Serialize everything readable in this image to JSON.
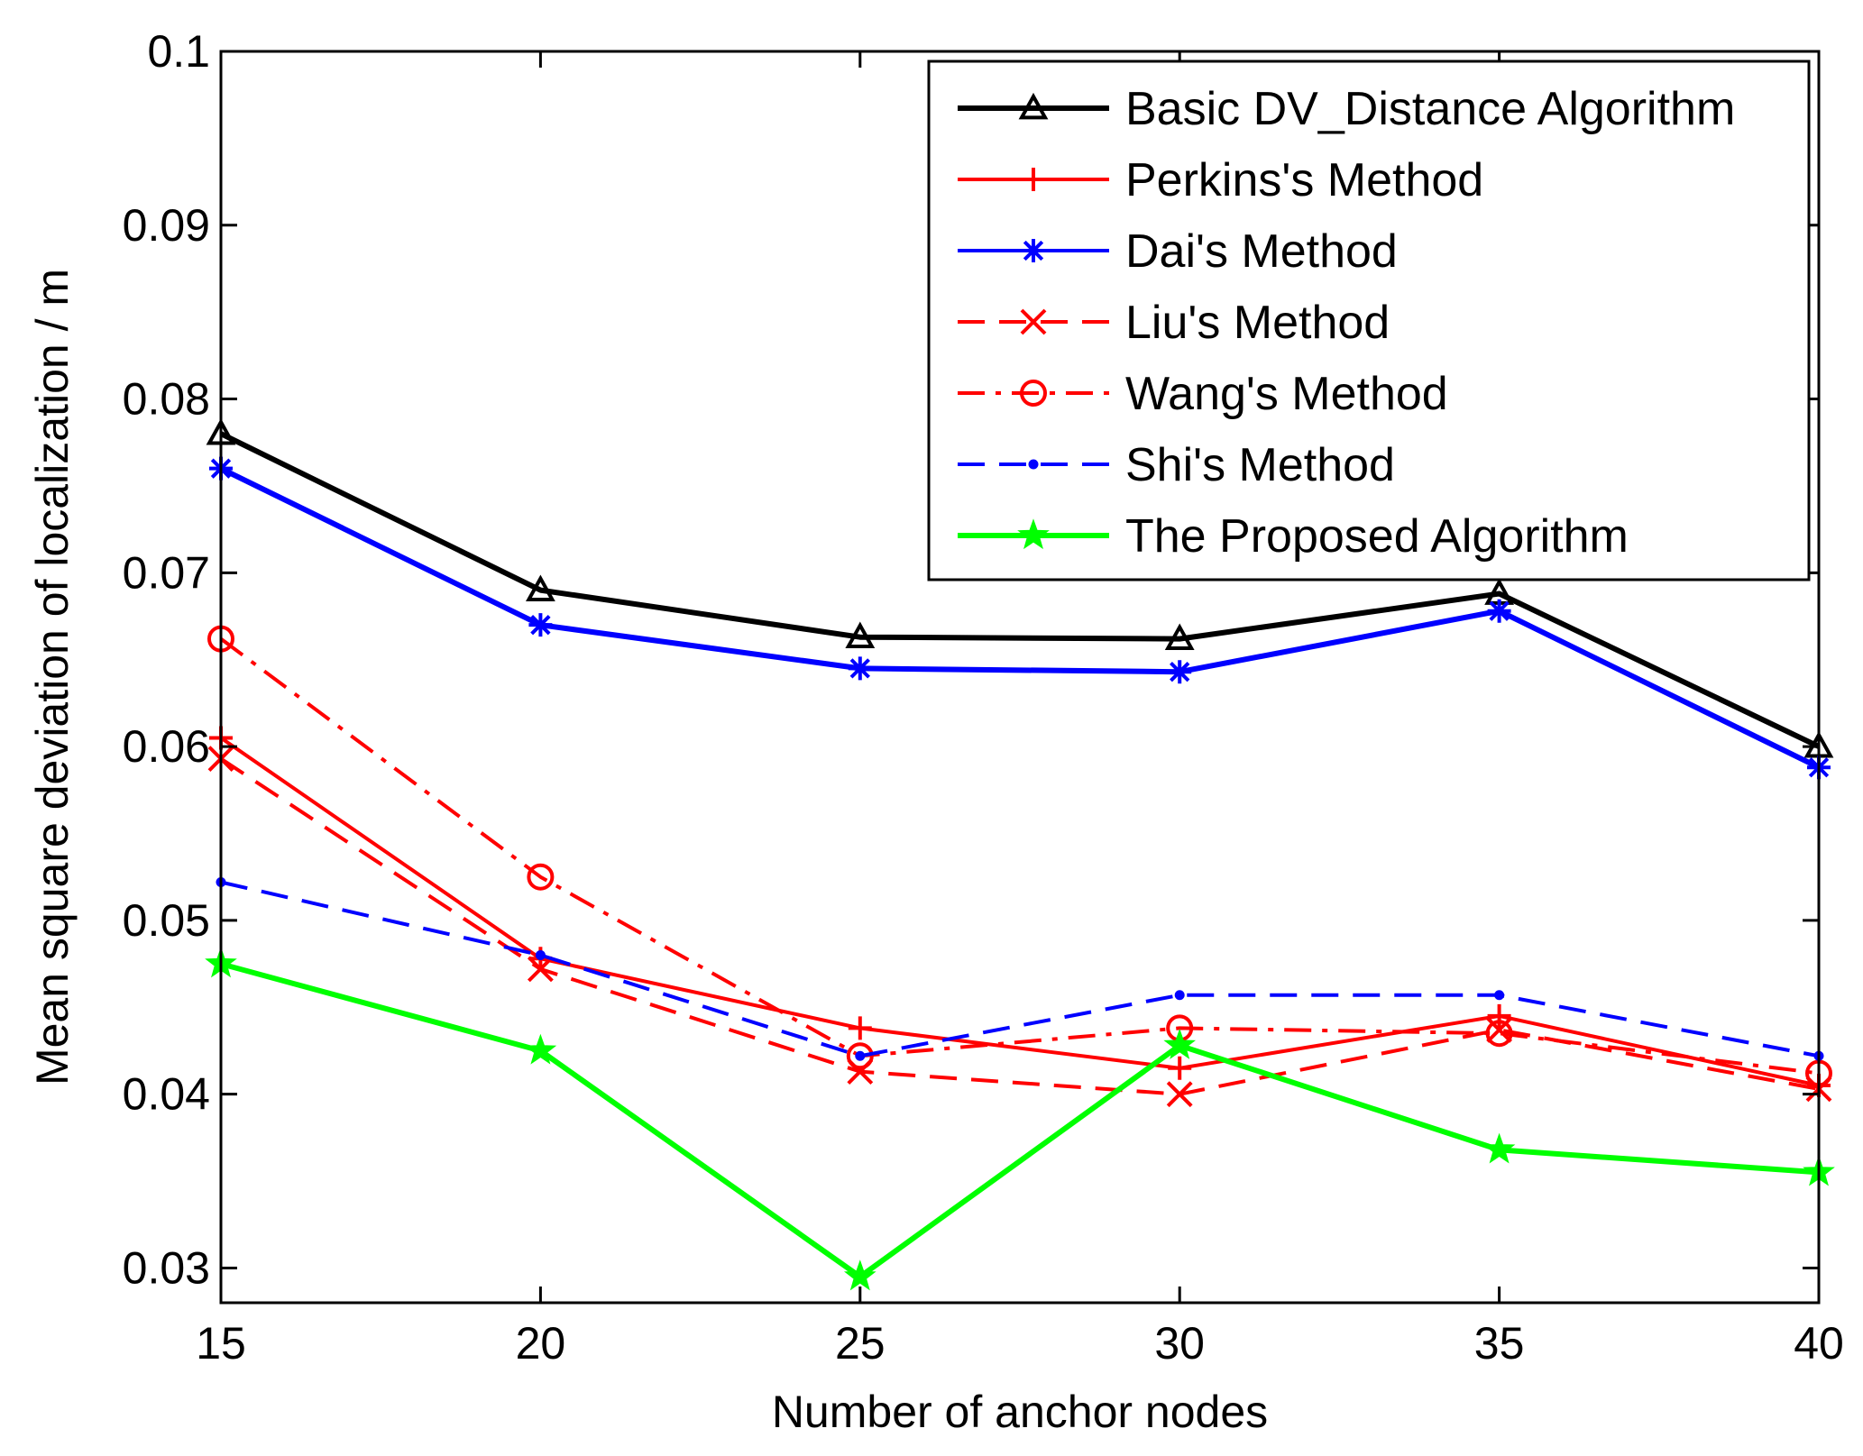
{
  "chart_data": {
    "type": "line",
    "title": "",
    "xlabel": "Number of anchor nodes",
    "ylabel": "Mean square deviation of localization / m",
    "x": [
      15,
      20,
      25,
      30,
      35,
      40
    ],
    "xlim": [
      15,
      40
    ],
    "ylim": [
      0.028,
      0.1
    ],
    "xticks": [
      15,
      20,
      25,
      30,
      35,
      40
    ],
    "yticks": [
      0.03,
      0.04,
      0.05,
      0.06,
      0.07,
      0.08,
      0.09,
      0.1
    ],
    "xtick_labels": [
      "15",
      "20",
      "25",
      "30",
      "35",
      "40"
    ],
    "ytick_labels": [
      "0.03",
      "0.04",
      "0.05",
      "0.06",
      "0.07",
      "0.08",
      "0.09",
      "0.1"
    ],
    "grid": false,
    "legend_position": "top-right",
    "series": [
      {
        "name": "Basic DV_Distance Algorithm",
        "values": [
          0.078,
          0.069,
          0.0663,
          0.0662,
          0.0688,
          0.06
        ],
        "color": "#000000",
        "dash": "solid",
        "marker": "triangle"
      },
      {
        "name": "Perkins's Method",
        "values": [
          0.0605,
          0.0478,
          0.0438,
          0.0415,
          0.0445,
          0.0405
        ],
        "color": "#ff0000",
        "dash": "solid",
        "marker": "plus"
      },
      {
        "name": "Dai's Method",
        "values": [
          0.076,
          0.067,
          0.0645,
          0.0643,
          0.0678,
          0.0588
        ],
        "color": "#0000ff",
        "dash": "solid",
        "marker": "asterisk"
      },
      {
        "name": "Liu's Method",
        "values": [
          0.0593,
          0.0472,
          0.0413,
          0.04,
          0.0437,
          0.0403
        ],
        "color": "#ff0000",
        "dash": "dashed",
        "marker": "x"
      },
      {
        "name": "Wang's Method",
        "values": [
          0.0662,
          0.0525,
          0.0422,
          0.0438,
          0.0435,
          0.0412
        ],
        "color": "#ff0000",
        "dash": "dashdot",
        "marker": "circle"
      },
      {
        "name": "Shi's Method",
        "values": [
          0.0522,
          0.048,
          0.0422,
          0.0457,
          0.0457,
          0.0422
        ],
        "color": "#0000ff",
        "dash": "dashed",
        "marker": "dot"
      },
      {
        "name": "The Proposed Algorithm",
        "values": [
          0.0475,
          0.0425,
          0.0295,
          0.0428,
          0.0368,
          0.0355
        ],
        "color": "#00ff00",
        "dash": "solid",
        "marker": "star"
      }
    ]
  }
}
